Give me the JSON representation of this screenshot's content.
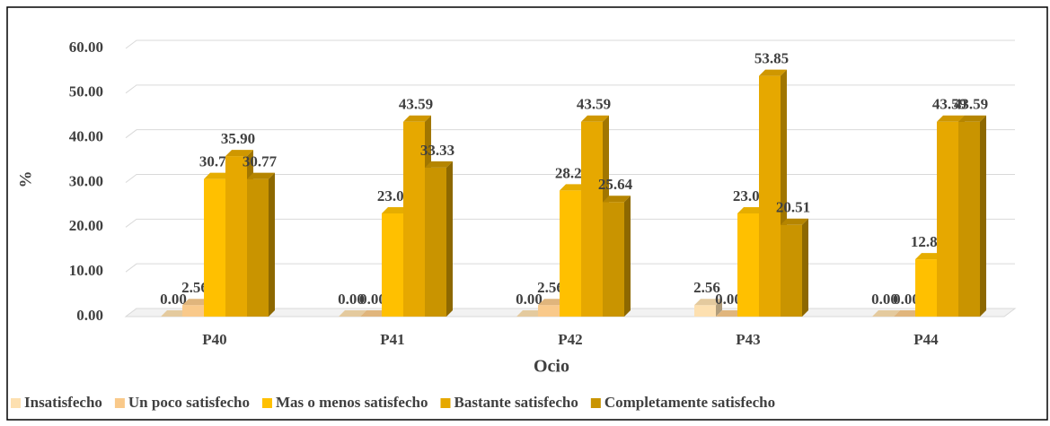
{
  "chart_data": {
    "type": "bar3d",
    "categories": [
      "P40",
      "P41",
      "P42",
      "P43",
      "P44"
    ],
    "series": [
      {
        "name": "Insatisfecho",
        "color": "#fde0b0",
        "values": [
          0,
          0,
          0,
          2.56,
          0
        ],
        "value_labels": [
          "0.00",
          "0.00",
          "0.00",
          "2.56",
          "0.00"
        ]
      },
      {
        "name": "Un poco satisfecho",
        "color": "#f9c98a",
        "values": [
          2.56,
          0,
          2.56,
          0,
          0
        ],
        "value_labels": [
          "2.56",
          "0.00",
          "2.56",
          "0.00",
          "0.00"
        ]
      },
      {
        "name": "Mas o menos satisfecho",
        "color": "#ffc000",
        "values": [
          30.77,
          23.08,
          28.21,
          23.08,
          12.82
        ],
        "value_labels": [
          "30.77",
          "23.08",
          "28.21",
          "23.08",
          "12.82"
        ]
      },
      {
        "name": "Bastante satisfecho",
        "color": "#e6a800",
        "values": [
          35.9,
          43.59,
          43.59,
          53.85,
          43.59
        ],
        "value_labels": [
          "35.90",
          "43.59",
          "43.59",
          "53.85",
          "43.59"
        ]
      },
      {
        "name": "Completamente satisfecho",
        "color": "#c99400",
        "values": [
          30.77,
          33.33,
          25.64,
          20.51,
          43.59
        ],
        "value_labels": [
          "30.77",
          "33.33",
          "25.64",
          "20.51",
          "43.59"
        ]
      }
    ],
    "x_label": "Ocio",
    "y_label": "%",
    "ylim": [
      0,
      60
    ],
    "yticks": [
      {
        "value": 0,
        "label": "0.00"
      },
      {
        "value": 10,
        "label": "10.00"
      },
      {
        "value": 20,
        "label": "20.00"
      },
      {
        "value": 30,
        "label": "30.00"
      },
      {
        "value": 40,
        "label": "40.00"
      },
      {
        "value": 50,
        "label": "50.00"
      },
      {
        "value": 60,
        "label": "60.00"
      }
    ],
    "grid": true,
    "legend": "bottom"
  }
}
